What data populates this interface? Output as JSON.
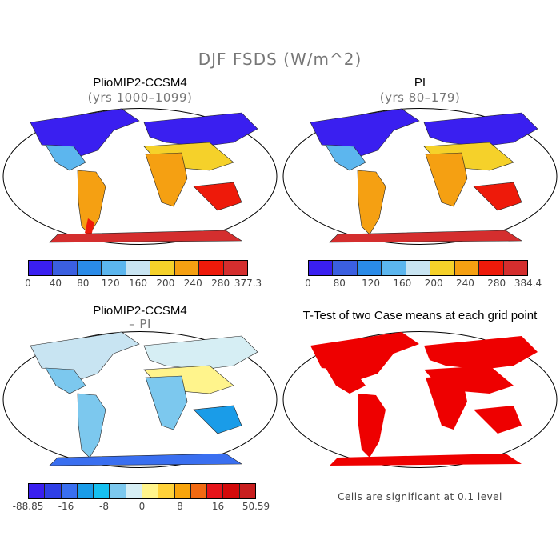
{
  "title": "DJF FSDS (W/m^2)",
  "panels": [
    {
      "title": "PlioMIP2-CCSM4",
      "subtitle": "(yrs 1000–1099)",
      "colorbar": {
        "colors": [
          "#3a1ff0",
          "#3b5fe0",
          "#2a8be8",
          "#5cb6ee",
          "#c8e4f2",
          "#f5d12a",
          "#f5a012",
          "#ee1a0a",
          "#d42e2e"
        ],
        "labels": [
          "0",
          "40",
          "80",
          "120",
          "160",
          "200",
          "240",
          "280",
          "377.3"
        ]
      }
    },
    {
      "title": "PI",
      "subtitle": "(yrs 80–179)",
      "colorbar": {
        "colors": [
          "#3a1ff0",
          "#3b5fe0",
          "#2a8be8",
          "#5cb6ee",
          "#c8e4f2",
          "#f5d12a",
          "#f5a012",
          "#ee1a0a",
          "#d42e2e"
        ],
        "labels": [
          "0",
          "80",
          "120",
          "160",
          "200",
          "240",
          "280",
          "384.4"
        ]
      }
    },
    {
      "title": "PlioMIP2-CCSM4",
      "subtitle": "– PI",
      "colorbar": {
        "colors": [
          "#3a1ff0",
          "#2f3fe6",
          "#3a6ff0",
          "#1a9ce8",
          "#17c0f0",
          "#7cc8ee",
          "#d6eef4",
          "#fff48c",
          "#ffd23a",
          "#f8a40c",
          "#f26a12",
          "#e6141a",
          "#d20a0a",
          "#c81e1e"
        ],
        "labels": [
          "-88.85",
          "-16",
          "-8",
          "0",
          "8",
          "16",
          "50.59"
        ]
      }
    },
    {
      "title": "T-Test of two Case means at each grid point",
      "note": "Cells are significant at 0.1 level"
    }
  ]
}
